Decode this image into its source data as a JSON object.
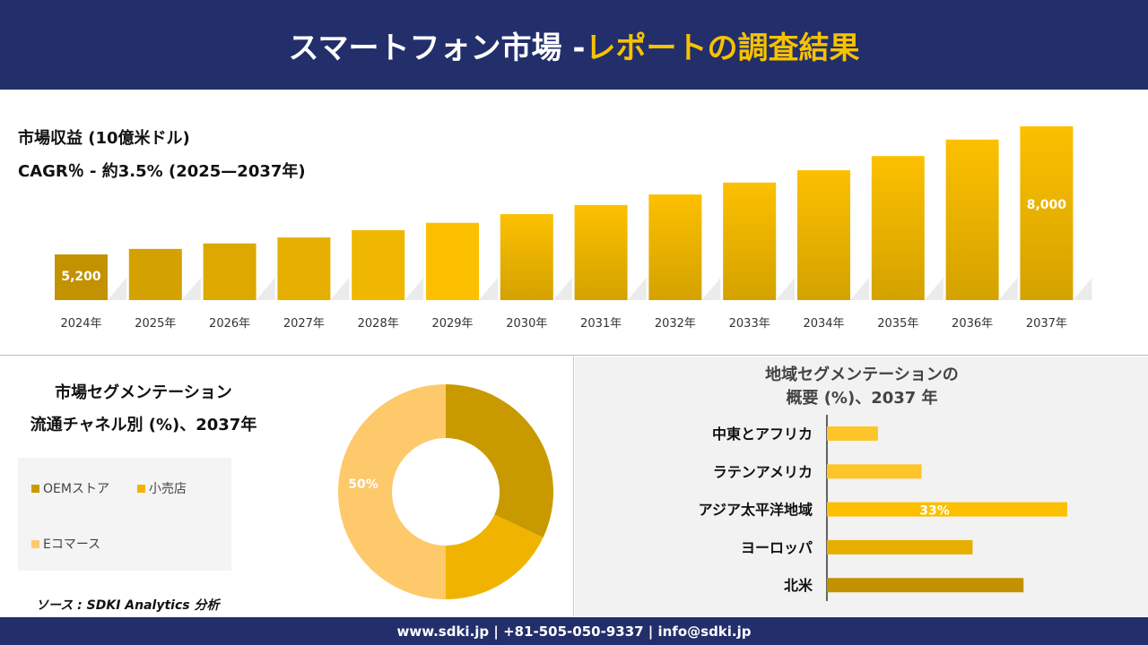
{
  "header": {
    "title_white": "スマートフォン市場 -",
    "title_yellow": "レポートの調査結果"
  },
  "colors": {
    "header_bg": "#232f6b",
    "accent": "#f7c200"
  },
  "revenue": {
    "label": "市場収益 (10億米ドル)",
    "cagr": "CAGR％ - 約3.5% (2025—2037年)"
  },
  "chart_data": [
    {
      "type": "bar",
      "title": "市場収益 (10億米ドル)",
      "categories": [
        "2024年",
        "2025年",
        "2026年",
        "2027年",
        "2028年",
        "2029年",
        "2030年",
        "2031年",
        "2032年",
        "2033年",
        "2034年",
        "2035年",
        "2036年",
        "2037年"
      ],
      "values": [
        5200,
        5320,
        5440,
        5570,
        5730,
        5890,
        6080,
        6280,
        6510,
        6770,
        7040,
        7350,
        7710,
        8000
      ],
      "data_labels": {
        "0": "5,200",
        "13": "8,000"
      },
      "grid": false
    },
    {
      "type": "pie",
      "title": "市場セグメンテーション 流通チャネル別 (%)、2037年",
      "categories": [
        "OEMストア",
        "小売店",
        "Eコマース"
      ],
      "values": [
        32,
        18,
        50
      ],
      "colors": [
        "#c89a00",
        "#f0b400",
        "#fdc96a"
      ],
      "data_labels": {
        "2": "50%"
      },
      "legend": "left"
    },
    {
      "type": "bar",
      "orientation": "horizontal",
      "title": "地域セグメンテーションの 概要 (%)、2037 年",
      "categories": [
        "中東とアフリカ",
        "ラテンアメリカ",
        "アジア太平洋地域",
        "ヨーロッパ",
        "北米"
      ],
      "values": [
        7,
        13,
        33,
        20,
        27
      ],
      "colors": [
        "#fdc52a",
        "#fdc52a",
        "#fcc000",
        "#e6ae00",
        "#c39200"
      ],
      "data_labels": {
        "2": "33%"
      }
    }
  ],
  "channel": {
    "title1": "市場セグメンテーション",
    "title2": "流通チャネル別 (%)、2037年"
  },
  "region": {
    "title1": "地域セグメンテーションの",
    "title2": "概要 (%)、2037 年"
  },
  "source": "ソース : SDKI Analytics 分析",
  "footer": "www.sdki.jp | +81-505-050-9337 | info@sdki.jp"
}
